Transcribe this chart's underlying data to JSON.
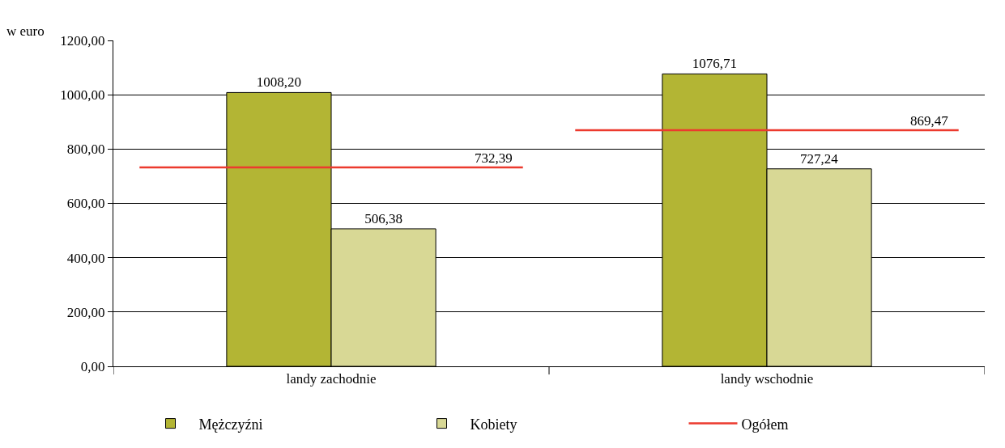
{
  "chart_data": {
    "type": "bar",
    "ylabel": "w euro",
    "categories": [
      "landy zachodnie",
      "landy wschodnie"
    ],
    "series": [
      {
        "name": "Mężczyźni",
        "color": "#b3b534",
        "values": [
          1008.2,
          1076.71
        ],
        "value_labels": [
          "1008,20",
          "1076,71"
        ]
      },
      {
        "name": "Kobiety",
        "color": "#d8d895",
        "values": [
          506.38,
          727.24
        ],
        "value_labels": [
          "506,38",
          "727,24"
        ]
      },
      {
        "name": "Ogółem",
        "type": "line",
        "color": "#ec3a2e",
        "values": [
          null,
          null
        ]
      }
    ],
    "ref_lines": [
      {
        "axis": "y",
        "value": 732.39,
        "label": "732,39",
        "color": "#ec3a2e"
      },
      {
        "axis": "y",
        "value": 869.47,
        "label": "869,47",
        "color": "#ec3a2e"
      }
    ],
    "ylim": [
      0,
      1200
    ],
    "yticks": [
      {
        "value": 0,
        "label": "0,00"
      },
      {
        "value": 200,
        "label": "200,00"
      },
      {
        "value": 400,
        "label": "400,00"
      },
      {
        "value": 600,
        "label": "600,00"
      },
      {
        "value": 800,
        "label": "800,00"
      },
      {
        "value": 1000,
        "label": "1000,00"
      },
      {
        "value": 1200,
        "label": "1200,00"
      }
    ],
    "grid": "y",
    "legend": "bottom"
  }
}
